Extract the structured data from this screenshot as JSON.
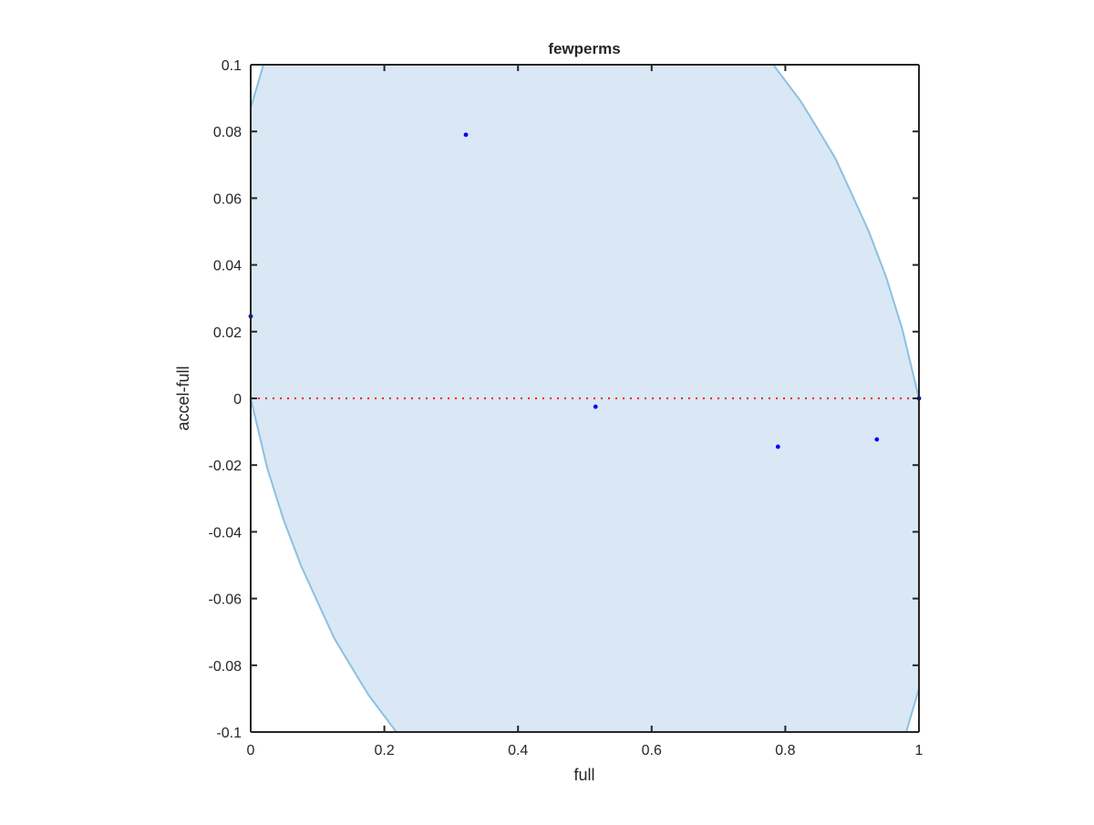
{
  "chart_data": {
    "type": "scatter",
    "title": "fewperms",
    "xlabel": "full",
    "ylabel": "accel-full",
    "xlim": [
      0,
      1
    ],
    "ylim": [
      -0.1,
      0.1
    ],
    "xticks": [
      0,
      0.2,
      0.4,
      0.6,
      0.8,
      1
    ],
    "xtick_labels": [
      "0",
      "0.2",
      "0.4",
      "0.6",
      "0.8",
      "1"
    ],
    "yticks": [
      -0.1,
      -0.08,
      -0.06,
      -0.04,
      -0.02,
      0,
      0.02,
      0.04,
      0.06,
      0.08,
      0.1
    ],
    "ytick_labels": [
      "-0.1",
      "-0.08",
      "-0.06",
      "-0.04",
      "-0.02",
      "0",
      "0.02",
      "0.04",
      "0.06",
      "0.08",
      "0.1"
    ],
    "grid": false,
    "points": {
      "color": "#0000ff",
      "x": [
        0,
        0.322,
        0.516,
        0.789,
        0.937,
        1
      ],
      "y": [
        0.0246,
        0.079,
        -0.0025,
        -0.0145,
        -0.0123,
        0
      ]
    },
    "reference_line": {
      "y": 0,
      "style": "dotted",
      "color": "#ff0000"
    },
    "band": {
      "fill": "#d9e8f4",
      "edge": "#8cc0e3",
      "lower_left_curve": [
        [
          0,
          0
        ],
        [
          0.0246,
          -0.0208
        ],
        [
          0.049,
          -0.0363
        ],
        [
          0.075,
          -0.05
        ],
        [
          0.1,
          -0.061
        ],
        [
          0.125,
          -0.0719
        ],
        [
          0.151,
          -0.0806
        ],
        [
          0.177,
          -0.0891
        ],
        [
          0.218,
          -0.1
        ]
      ],
      "upper_right_curve": [
        [
          0.782,
          0.1
        ],
        [
          0.823,
          0.0891
        ],
        [
          0.849,
          0.0806
        ],
        [
          0.875,
          0.0719
        ],
        [
          0.9,
          0.061
        ],
        [
          0.925,
          0.05
        ],
        [
          0.951,
          0.0363
        ],
        [
          0.975,
          0.0208
        ],
        [
          1,
          0
        ]
      ],
      "upper_left_curve": [
        [
          0,
          0.087
        ],
        [
          0.019,
          0.1
        ]
      ],
      "lower_right_curve": [
        [
          0.981,
          -0.1
        ],
        [
          1,
          -0.087
        ]
      ]
    }
  }
}
